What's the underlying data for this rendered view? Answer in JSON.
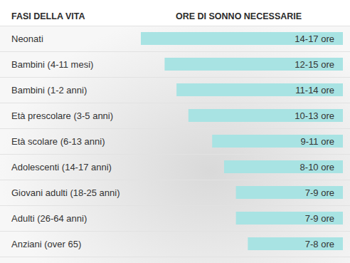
{
  "chart_data": {
    "type": "bar",
    "orientation": "horizontal",
    "y_label": "FASI DELLA VITA",
    "x_label": "ORE DI SONNO NECESSARIE",
    "categories": [
      "Neonati",
      "Bambini (4-11 mesi)",
      "Bambini (1-2 anni)",
      "Età prescolare (3-5 anni)",
      "Età scolare (6-13 anni)",
      "Adolescenti (14-17 anni)",
      "Giovani adulti (18-25 anni)",
      "Adulti (26-64 anni)",
      "Anziani (over 65)"
    ],
    "values": [
      17,
      15,
      14,
      13,
      11,
      10,
      9,
      9,
      8
    ],
    "value_labels": [
      "14-17 ore",
      "12-15 ore",
      "11-14 ore",
      "10-13 ore",
      "9-11 ore",
      "8-10 ore",
      "7-9 ore",
      "7-9 ore",
      "7-8 ore"
    ],
    "data_labels": true,
    "tick_labels": false,
    "grid": true,
    "color": "#a8e3e3",
    "xlim": [
      0,
      17
    ]
  }
}
